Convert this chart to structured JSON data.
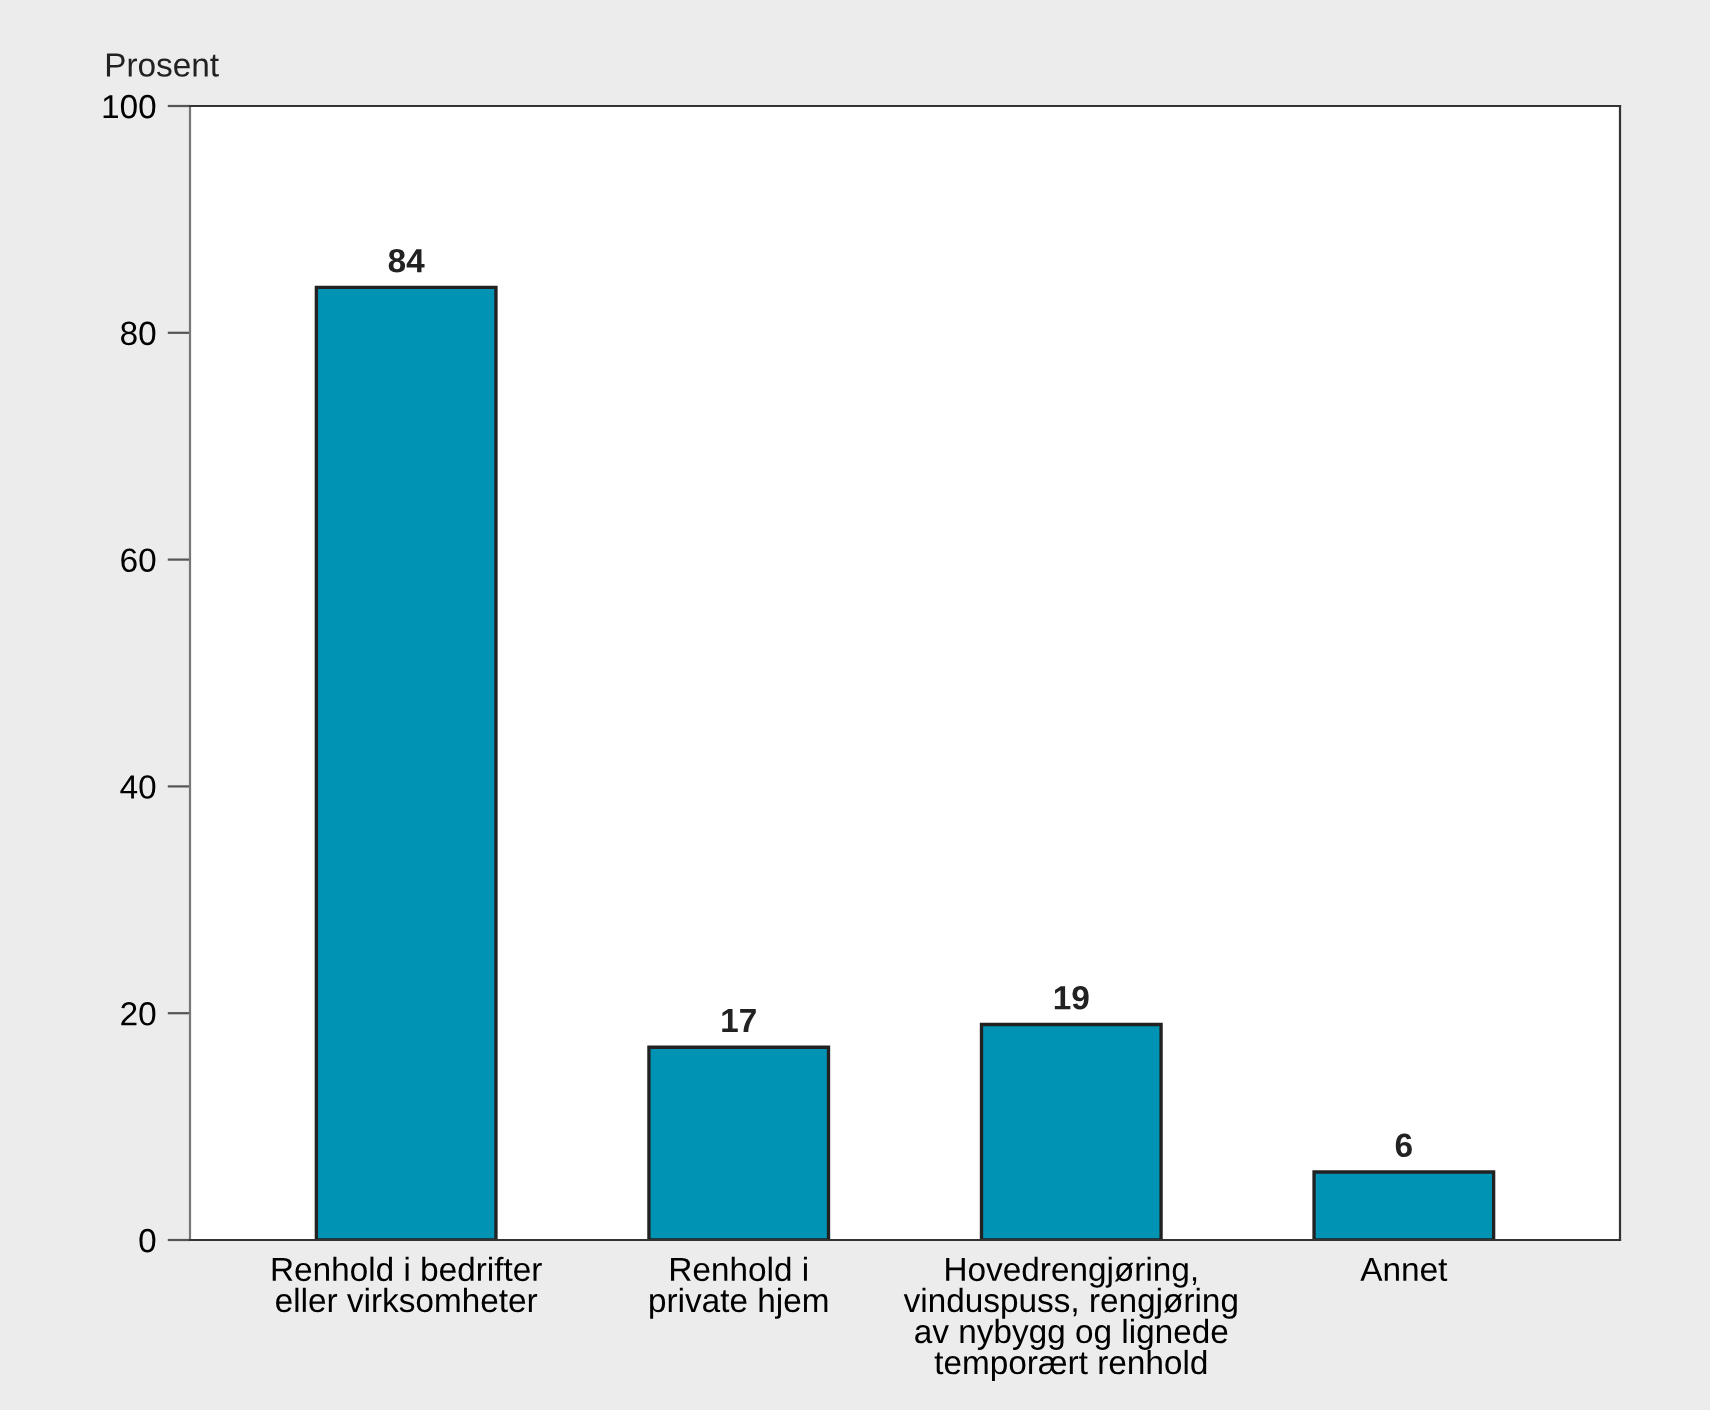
{
  "chart_data": {
    "type": "bar",
    "ylabel": "Prosent",
    "categories": [
      "Renhold i bedrifter\neller virksomheter",
      "Renhold i\nprivate hjem",
      "Hovedrengjøring,\nvinduspuss, rengjøring\nav nybygg og lignede\ntemporært renhold",
      "Annet"
    ],
    "values": [
      84,
      17,
      19,
      6
    ],
    "color": "#0093b4",
    "ylim": [
      0,
      100
    ],
    "yticks": [
      0,
      20,
      40,
      60,
      80,
      100
    ],
    "grid": false,
    "data_labels": true
  }
}
